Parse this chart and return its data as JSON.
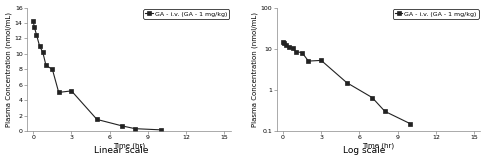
{
  "time": [
    0,
    0.083,
    0.25,
    0.5,
    0.75,
    1.0,
    1.5,
    2.0,
    3.0,
    5.0,
    7.0,
    8.0,
    10.0
  ],
  "concentration": [
    14.2,
    13.5,
    12.5,
    11.0,
    10.2,
    8.5,
    8.0,
    5.0,
    5.2,
    1.5,
    0.65,
    0.3,
    0.15
  ],
  "legend_label": "GA - i.v. (GA - 1 mg/kg)",
  "xlabel": "Time (hr)",
  "ylabel": "Plasma Concentration (nmol/mL)",
  "linear_title": "Linear scale",
  "log_title": "Log scale",
  "linear_ylim": [
    0,
    16
  ],
  "linear_yticks": [
    0,
    2,
    4,
    6,
    8,
    10,
    12,
    14,
    16
  ],
  "linear_xticks": [
    0,
    3,
    6,
    9,
    12,
    15
  ],
  "log_ylim": [
    0.1,
    100
  ],
  "log_yticks": [
    0.1,
    1,
    10,
    100
  ],
  "log_xticks": [
    0,
    3,
    6,
    9,
    12,
    15
  ],
  "line_color": "#222222",
  "marker": "s",
  "marker_size": 2.5,
  "line_width": 0.8,
  "background_color": "#ffffff",
  "font_size_axis_label": 5.0,
  "font_size_tick": 4.5,
  "font_size_legend": 4.5,
  "font_size_title": 6.5
}
